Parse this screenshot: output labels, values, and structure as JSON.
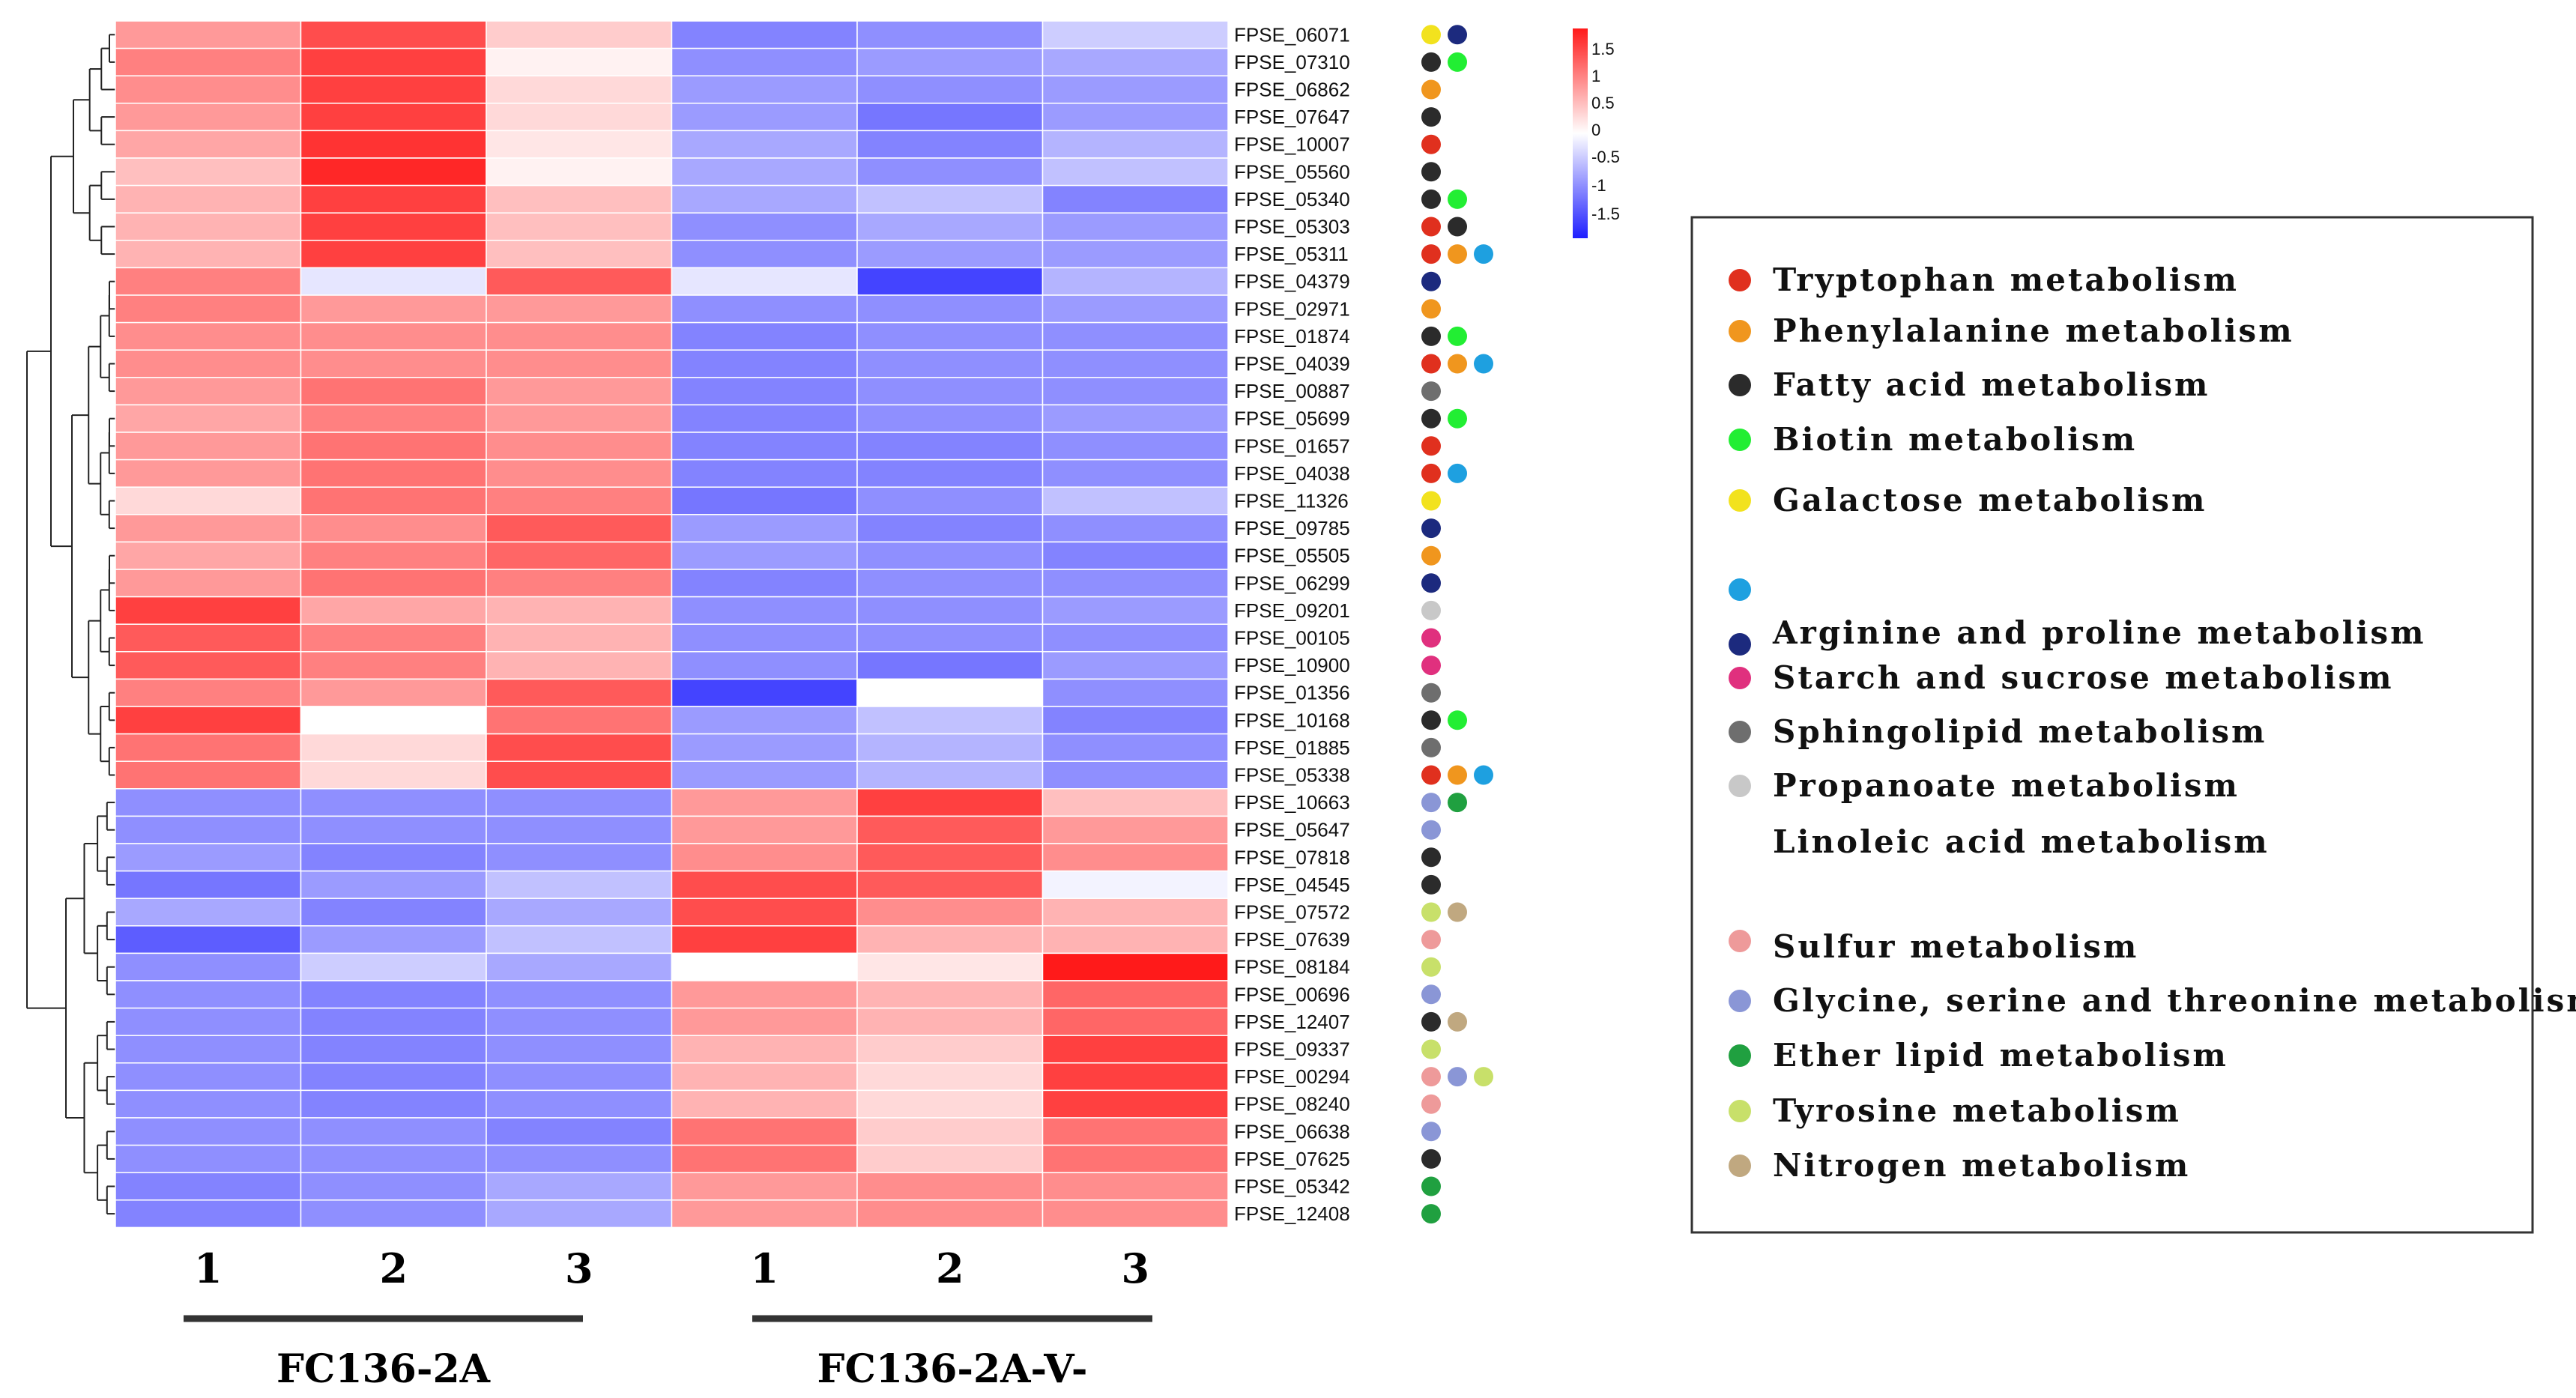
{
  "chart_data": {
    "type": "heatmap",
    "title": "",
    "column_labels": [
      "1",
      "2",
      "3",
      "1",
      "2",
      "3"
    ],
    "groups": [
      {
        "name": "FC136-2A",
        "columns": [
          0,
          1,
          2
        ]
      },
      {
        "name": "FC136-2A-V-",
        "columns": [
          3,
          4,
          5
        ]
      }
    ],
    "color_scale": {
      "min": -1.8,
      "max": 1.8,
      "low_color": "#1f1fff",
      "mid_color": "#ffffff",
      "high_color": "#ff1a1a",
      "tick_labels": [
        "1.5",
        "1",
        "0.5",
        "0",
        "-0.5",
        "-1",
        "-1.5"
      ]
    },
    "rows": [
      {
        "gene": "FPSE_06071",
        "values": [
          0.8,
          1.4,
          0.4,
          -1.0,
          -0.9,
          -0.4
        ],
        "pathways": [
          "galactose",
          "starch"
        ]
      },
      {
        "gene": "FPSE_07310",
        "values": [
          1.0,
          1.5,
          0.1,
          -0.9,
          -0.8,
          -0.7
        ],
        "pathways": [
          "fatty_acid",
          "biotin"
        ]
      },
      {
        "gene": "FPSE_06862",
        "values": [
          0.9,
          1.5,
          0.3,
          -0.8,
          -0.9,
          -0.8
        ],
        "pathways": [
          "phenylalanine"
        ]
      },
      {
        "gene": "FPSE_07647",
        "values": [
          0.8,
          1.5,
          0.3,
          -0.8,
          -1.1,
          -0.8
        ],
        "pathways": [
          "fatty_acid"
        ]
      },
      {
        "gene": "FPSE_10007",
        "values": [
          0.7,
          1.6,
          0.2,
          -0.7,
          -1.0,
          -0.6
        ],
        "pathways": [
          "tryptophan"
        ]
      },
      {
        "gene": "FPSE_05560",
        "values": [
          0.5,
          1.7,
          0.1,
          -0.7,
          -0.9,
          -0.5
        ],
        "pathways": [
          "fatty_acid"
        ]
      },
      {
        "gene": "FPSE_05340",
        "values": [
          0.6,
          1.5,
          0.5,
          -0.7,
          -0.5,
          -1.0
        ],
        "pathways": [
          "fatty_acid",
          "biotin"
        ]
      },
      {
        "gene": "FPSE_05303",
        "values": [
          0.6,
          1.5,
          0.5,
          -0.9,
          -0.7,
          -0.8
        ],
        "pathways": [
          "tryptophan",
          "fatty_acid"
        ]
      },
      {
        "gene": "FPSE_05311",
        "values": [
          0.6,
          1.5,
          0.5,
          -0.9,
          -0.8,
          -0.8
        ],
        "pathways": [
          "tryptophan",
          "phenylalanine",
          "arginine"
        ]
      },
      {
        "gene": "FPSE_04379",
        "values": [
          1.0,
          -0.2,
          1.3,
          -0.2,
          -1.5,
          -0.6
        ],
        "pathways": [
          "starch"
        ]
      },
      {
        "gene": "FPSE_02971",
        "values": [
          1.0,
          0.8,
          0.8,
          -0.9,
          -0.9,
          -0.8
        ],
        "pathways": [
          "phenylalanine"
        ]
      },
      {
        "gene": "FPSE_01874",
        "values": [
          0.9,
          0.9,
          0.9,
          -1.0,
          -0.9,
          -0.9
        ],
        "pathways": [
          "fatty_acid",
          "biotin"
        ]
      },
      {
        "gene": "FPSE_04039",
        "values": [
          0.9,
          0.9,
          0.9,
          -1.0,
          -0.9,
          -0.9
        ],
        "pathways": [
          "tryptophan",
          "phenylalanine",
          "arginine"
        ]
      },
      {
        "gene": "FPSE_00887",
        "values": [
          0.8,
          1.1,
          0.8,
          -1.0,
          -0.9,
          -0.9
        ],
        "pathways": [
          "propanoate"
        ]
      },
      {
        "gene": "FPSE_05699",
        "values": [
          0.7,
          1.0,
          0.8,
          -1.0,
          -0.9,
          -0.8
        ],
        "pathways": [
          "fatty_acid",
          "biotin"
        ]
      },
      {
        "gene": "FPSE_01657",
        "values": [
          0.8,
          1.1,
          0.9,
          -1.0,
          -1.0,
          -0.9
        ],
        "pathways": [
          "tryptophan"
        ]
      },
      {
        "gene": "FPSE_04038",
        "values": [
          0.8,
          1.1,
          0.9,
          -1.0,
          -1.0,
          -0.9
        ],
        "pathways": [
          "tryptophan",
          "arginine"
        ]
      },
      {
        "gene": "FPSE_11326",
        "values": [
          0.3,
          1.1,
          1.0,
          -1.1,
          -0.9,
          -0.5
        ],
        "pathways": [
          "galactose"
        ]
      },
      {
        "gene": "FPSE_09785",
        "values": [
          0.8,
          0.9,
          1.3,
          -0.8,
          -1.0,
          -0.9
        ],
        "pathways": [
          "starch"
        ]
      },
      {
        "gene": "FPSE_05505",
        "values": [
          0.7,
          1.0,
          1.2,
          -0.8,
          -0.9,
          -1.0
        ],
        "pathways": [
          "phenylalanine"
        ]
      },
      {
        "gene": "FPSE_06299",
        "values": [
          0.8,
          1.1,
          1.0,
          -1.0,
          -0.9,
          -0.9
        ],
        "pathways": [
          "starch"
        ]
      },
      {
        "gene": "FPSE_09201",
        "values": [
          1.5,
          0.7,
          0.6,
          -0.9,
          -0.9,
          -0.8
        ],
        "pathways": [
          "linoleic"
        ]
      },
      {
        "gene": "FPSE_00105",
        "values": [
          1.3,
          1.0,
          0.6,
          -0.9,
          -0.9,
          -0.9
        ],
        "pathways": [
          "sphingolipid"
        ]
      },
      {
        "gene": "FPSE_10900",
        "values": [
          1.3,
          1.0,
          0.6,
          -0.9,
          -1.1,
          -0.8
        ],
        "pathways": [
          "sphingolipid"
        ]
      },
      {
        "gene": "FPSE_01356",
        "values": [
          1.0,
          0.8,
          1.3,
          -1.5,
          0.0,
          -0.9
        ],
        "pathways": [
          "propanoate"
        ]
      },
      {
        "gene": "FPSE_10168",
        "values": [
          1.5,
          0.0,
          1.1,
          -0.8,
          -0.5,
          -1.0
        ],
        "pathways": [
          "fatty_acid",
          "biotin"
        ]
      },
      {
        "gene": "FPSE_01885",
        "values": [
          1.1,
          0.3,
          1.4,
          -0.8,
          -0.6,
          -0.9
        ],
        "pathways": [
          "propanoate"
        ]
      },
      {
        "gene": "FPSE_05338",
        "values": [
          1.1,
          0.3,
          1.4,
          -0.8,
          -0.6,
          -0.9
        ],
        "pathways": [
          "tryptophan",
          "phenylalanine",
          "arginine"
        ]
      },
      {
        "gene": "FPSE_10663",
        "values": [
          -0.9,
          -0.9,
          -0.9,
          0.8,
          1.5,
          0.5
        ],
        "pathways": [
          "glycine",
          "ether"
        ]
      },
      {
        "gene": "FPSE_05647",
        "values": [
          -0.9,
          -0.9,
          -0.9,
          0.8,
          1.3,
          0.8
        ],
        "pathways": [
          "glycine"
        ]
      },
      {
        "gene": "FPSE_07818",
        "values": [
          -0.8,
          -1.0,
          -0.9,
          0.9,
          1.3,
          0.9
        ],
        "pathways": [
          "fatty_acid"
        ]
      },
      {
        "gene": "FPSE_04545",
        "values": [
          -1.1,
          -0.8,
          -0.5,
          1.4,
          1.3,
          -0.1
        ],
        "pathways": [
          "fatty_acid"
        ]
      },
      {
        "gene": "FPSE_07572",
        "values": [
          -0.7,
          -1.0,
          -0.7,
          1.4,
          0.9,
          0.6
        ],
        "pathways": [
          "tyrosine",
          "nitrogen"
        ]
      },
      {
        "gene": "FPSE_07639",
        "values": [
          -1.3,
          -0.8,
          -0.5,
          1.5,
          0.6,
          0.6
        ],
        "pathways": [
          "sulfur"
        ]
      },
      {
        "gene": "FPSE_08184",
        "values": [
          -0.9,
          -0.4,
          -0.7,
          0.0,
          0.2,
          1.8
        ],
        "pathways": [
          "tyrosine"
        ]
      },
      {
        "gene": "FPSE_00696",
        "values": [
          -0.9,
          -1.0,
          -0.9,
          0.8,
          0.6,
          1.2
        ],
        "pathways": [
          "glycine"
        ]
      },
      {
        "gene": "FPSE_12407",
        "values": [
          -0.9,
          -1.0,
          -0.9,
          0.8,
          0.6,
          1.2
        ],
        "pathways": [
          "fatty_acid",
          "nitrogen"
        ]
      },
      {
        "gene": "FPSE_09337",
        "values": [
          -0.9,
          -1.0,
          -0.9,
          0.6,
          0.4,
          1.5
        ],
        "pathways": [
          "tyrosine"
        ]
      },
      {
        "gene": "FPSE_00294",
        "values": [
          -0.9,
          -1.0,
          -0.9,
          0.6,
          0.3,
          1.5
        ],
        "pathways": [
          "sulfur",
          "glycine",
          "tyrosine"
        ]
      },
      {
        "gene": "FPSE_08240",
        "values": [
          -0.9,
          -1.0,
          -0.9,
          0.6,
          0.3,
          1.5
        ],
        "pathways": [
          "sulfur"
        ]
      },
      {
        "gene": "FPSE_06638",
        "values": [
          -0.9,
          -0.9,
          -1.0,
          1.1,
          0.4,
          1.1
        ],
        "pathways": [
          "glycine"
        ]
      },
      {
        "gene": "FPSE_07625",
        "values": [
          -0.9,
          -0.9,
          -0.9,
          1.1,
          0.4,
          1.1
        ],
        "pathways": [
          "fatty_acid"
        ]
      },
      {
        "gene": "FPSE_05342",
        "values": [
          -1.0,
          -0.9,
          -0.7,
          0.8,
          0.9,
          0.9
        ],
        "pathways": [
          "ether"
        ]
      },
      {
        "gene": "FPSE_12408",
        "values": [
          -1.0,
          -0.9,
          -0.7,
          0.8,
          0.9,
          0.9
        ],
        "pathways": [
          "ether"
        ]
      }
    ],
    "legend": [
      {
        "key": "tryptophan",
        "label": "Tryptophan metabolism",
        "color": "#e0301e"
      },
      {
        "key": "phenylalanine",
        "label": "Phenylalanine metabolism",
        "color": "#f0961e"
      },
      {
        "key": "fatty_acid",
        "label": "Fatty acid metabolism",
        "color": "#2b2b2b"
      },
      {
        "key": "biotin",
        "label": "Biotin metabolism",
        "color": "#22ee33"
      },
      {
        "key": "galactose",
        "label": "Galactose metabolism",
        "color": "#f2e21e"
      },
      {
        "key": "arginine",
        "label": "",
        "color": "#1ea0e0"
      },
      {
        "key": "starch",
        "label": "Arginine and proline metabolism",
        "color": "#1c2a7e"
      },
      {
        "key": "sphingolipid",
        "label": "Starch and sucrose metabolism",
        "color": "#e0307e"
      },
      {
        "key": "propanoate",
        "label": "Sphingolipid metabolism",
        "color": "#6e6e6e"
      },
      {
        "key": "linoleic",
        "label": "Propanoate metabolism",
        "color": "#c8c8c8"
      },
      {
        "key": "linoleic_text",
        "label": "Linoleic acid metabolism",
        "color": ""
      },
      {
        "key": "sulfur",
        "label": "Sulfur metabolism",
        "color": "#ee9a9a"
      },
      {
        "key": "glycine",
        "label": "Glycine, serine and threonine metabolism",
        "color": "#8a96d6"
      },
      {
        "key": "ether",
        "label": "Ether lipid metabolism",
        "color": "#20a040"
      },
      {
        "key": "tyrosine",
        "label": "Tyrosine metabolism",
        "color": "#c8e06a"
      },
      {
        "key": "nitrogen",
        "label": "Nitrogen metabolism",
        "color": "#c0a880"
      }
    ]
  }
}
